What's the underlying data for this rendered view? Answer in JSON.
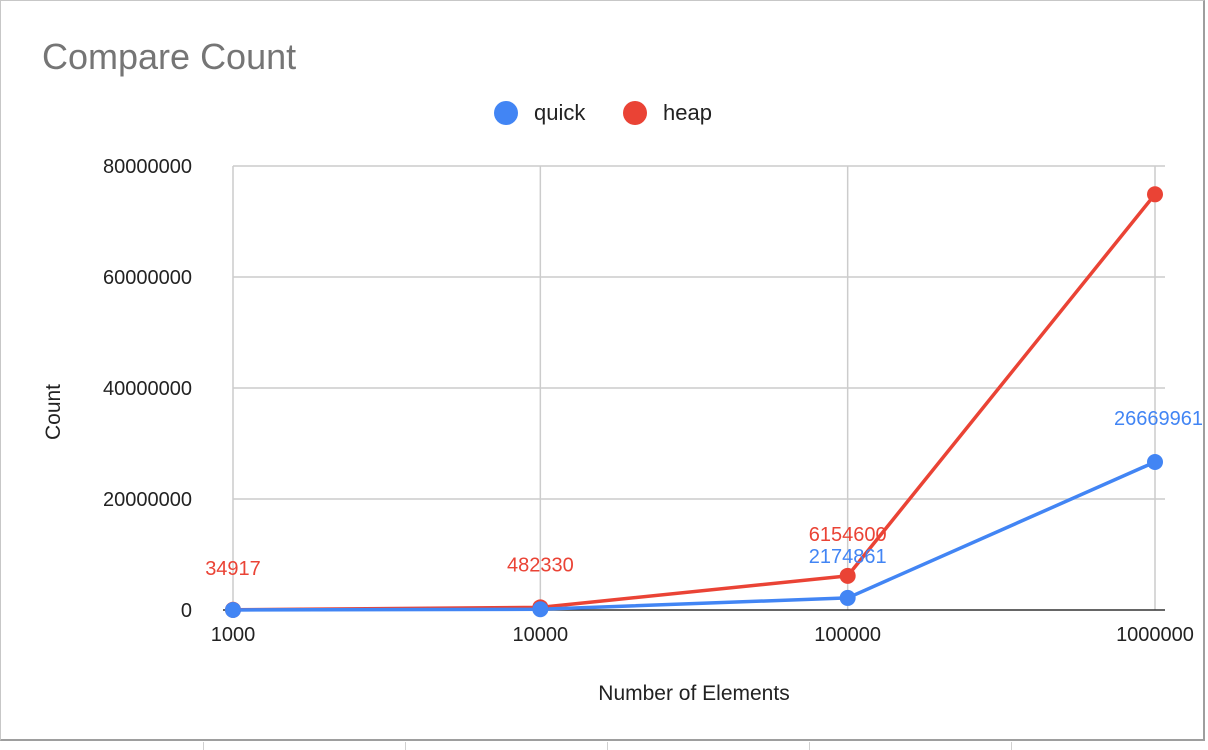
{
  "chart_data": {
    "type": "line",
    "title": "Compare Count",
    "xlabel": "Number of Elements",
    "ylabel": "Count",
    "categories": [
      "1000",
      "10000",
      "100000",
      "1000000"
    ],
    "ylim": [
      0,
      80000000
    ],
    "yticks": [
      "0",
      "20000000",
      "40000000",
      "60000000",
      "80000000"
    ],
    "ytick_values": [
      0,
      20000000,
      40000000,
      60000000,
      80000000
    ],
    "grid": true,
    "legend_position": "top",
    "series": [
      {
        "name": "quick",
        "color": "#4285F4",
        "values": [
          10000,
          130000,
          2174861,
          26669961
        ],
        "data_labels": [
          "",
          "",
          "2174861",
          "26669961"
        ]
      },
      {
        "name": "heap",
        "color": "#EA4335",
        "values": [
          34917,
          482330,
          6154600,
          74900000
        ],
        "data_labels": [
          "34917",
          "482330",
          "6154600",
          ""
        ]
      }
    ]
  }
}
